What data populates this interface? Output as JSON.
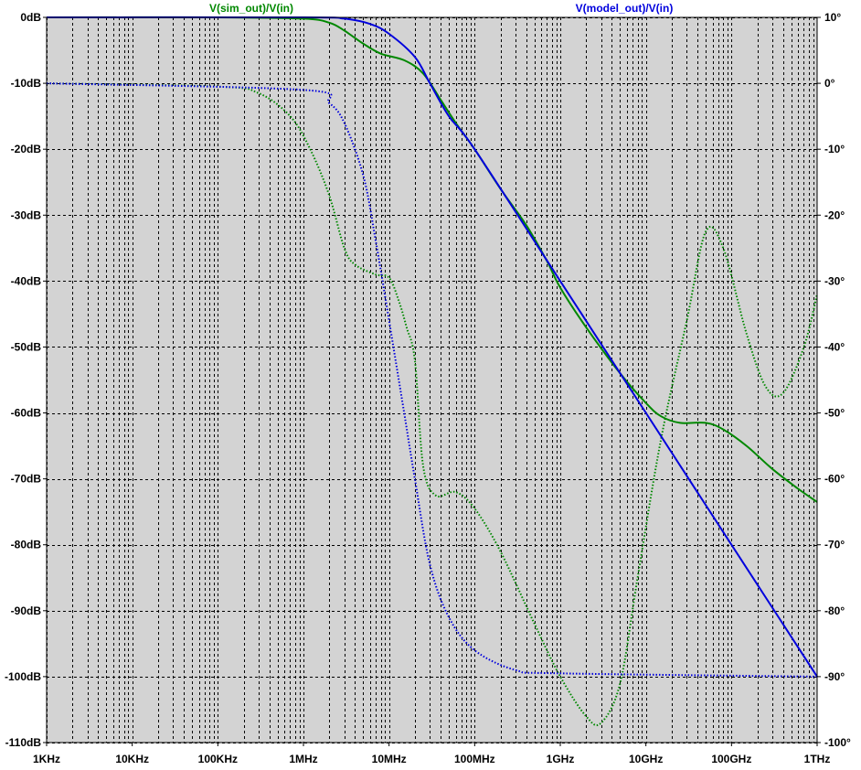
{
  "colors": {
    "background": "#ffffff",
    "plot_area": "#d3d3d3",
    "grid": "#000000",
    "sim": "#008800",
    "model": "#0000dd"
  },
  "chart_data": {
    "type": "line",
    "grid": true,
    "x_scale": "log",
    "x_unit": "Hz",
    "xlim": [
      1000,
      1000000000000
    ],
    "x_ticks": [
      {
        "value": 1000,
        "label": "1KHz"
      },
      {
        "value": 10000,
        "label": "10KHz"
      },
      {
        "value": 100000,
        "label": "100KHz"
      },
      {
        "value": 1000000,
        "label": "1MHz"
      },
      {
        "value": 10000000,
        "label": "10MHz"
      },
      {
        "value": 100000000,
        "label": "100MHz"
      },
      {
        "value": 1000000000,
        "label": "1GHz"
      },
      {
        "value": 10000000000,
        "label": "10GHz"
      },
      {
        "value": 100000000000,
        "label": "100GHz"
      },
      {
        "value": 1000000000000,
        "label": "1THz"
      }
    ],
    "y_left": {
      "unit": "dB",
      "lim": [
        -110,
        0
      ],
      "ticks": [
        {
          "value": 0,
          "label": "0dB"
        },
        {
          "value": -10,
          "label": "-10dB"
        },
        {
          "value": -20,
          "label": "-20dB"
        },
        {
          "value": -30,
          "label": "-30dB"
        },
        {
          "value": -40,
          "label": "-40dB"
        },
        {
          "value": -50,
          "label": "-50dB"
        },
        {
          "value": -60,
          "label": "-60dB"
        },
        {
          "value": -70,
          "label": "-70dB"
        },
        {
          "value": -80,
          "label": "-80dB"
        },
        {
          "value": -90,
          "label": "-90dB"
        },
        {
          "value": -100,
          "label": "-100dB"
        },
        {
          "value": -110,
          "label": "-110dB"
        }
      ]
    },
    "y_right": {
      "unit": "degrees",
      "lim": [
        -100,
        10
      ],
      "ticks": [
        {
          "value": 10,
          "label": "10°"
        },
        {
          "value": 0,
          "label": "0°"
        },
        {
          "value": -10,
          "label": "-10°"
        },
        {
          "value": -20,
          "label": "-20°"
        },
        {
          "value": -30,
          "label": "-30°"
        },
        {
          "value": -40,
          "label": "-40°"
        },
        {
          "value": -50,
          "label": "-50°"
        },
        {
          "value": -60,
          "label": "-60°"
        },
        {
          "value": -70,
          "label": "-70°"
        },
        {
          "value": -80,
          "label": "-80°"
        },
        {
          "value": -90,
          "label": "-90°"
        },
        {
          "value": -100,
          "label": "-100°"
        }
      ]
    },
    "series": [
      {
        "name": "V(sim_out)/V(in)",
        "color": "#008800",
        "magnitude_db": [
          [
            1000,
            0
          ],
          [
            100000,
            0
          ],
          [
            1000000,
            -0.2
          ],
          [
            2000000,
            -0.8
          ],
          [
            3000000,
            -2
          ],
          [
            5000000,
            -4
          ],
          [
            8000000,
            -5.5
          ],
          [
            15000000,
            -6.5
          ],
          [
            25000000,
            -8.5
          ],
          [
            40000000,
            -12.5
          ],
          [
            60000000,
            -16
          ],
          [
            100000000,
            -20
          ],
          [
            200000000,
            -26
          ],
          [
            400000000,
            -31.5
          ],
          [
            700000000,
            -37
          ],
          [
            1000000000,
            -41
          ],
          [
            2000000000,
            -47
          ],
          [
            5000000000,
            -54
          ],
          [
            10000000000,
            -58.5
          ],
          [
            15000000000,
            -60.5
          ],
          [
            25000000000,
            -61.5
          ],
          [
            50000000000,
            -61.5
          ],
          [
            80000000000,
            -62.5
          ],
          [
            150000000000,
            -65
          ],
          [
            300000000000,
            -68.5
          ],
          [
            600000000000,
            -71.5
          ],
          [
            1000000000000,
            -73.5
          ]
        ],
        "phase_deg": [
          [
            1000,
            0
          ],
          [
            100000,
            -0.5
          ],
          [
            300000,
            -1.5
          ],
          [
            700000,
            -5
          ],
          [
            1200000,
            -10
          ],
          [
            2000000,
            -17
          ],
          [
            3000000,
            -25
          ],
          [
            4000000,
            -27.5
          ],
          [
            7000000,
            -29
          ],
          [
            10000000,
            -29.5
          ],
          [
            13000000,
            -33
          ],
          [
            16000000,
            -37
          ],
          [
            20000000,
            -42
          ],
          [
            25000000,
            -58
          ],
          [
            35000000,
            -62.5
          ],
          [
            60000000,
            -62
          ],
          [
            100000000,
            -64.5
          ],
          [
            200000000,
            -71
          ],
          [
            500000000,
            -82
          ],
          [
            1000000000,
            -90
          ],
          [
            2000000000,
            -96
          ],
          [
            3000000000,
            -97
          ],
          [
            5000000000,
            -91
          ],
          [
            8000000000,
            -75
          ],
          [
            15000000000,
            -54
          ],
          [
            30000000000,
            -36
          ],
          [
            50000000000,
            -22.5
          ],
          [
            80000000000,
            -25
          ],
          [
            150000000000,
            -38
          ],
          [
            250000000000,
            -46
          ],
          [
            400000000000,
            -47
          ],
          [
            700000000000,
            -40
          ],
          [
            1000000000000,
            -32
          ]
        ]
      },
      {
        "name": "V(model_out)/V(in)",
        "color": "#0000dd",
        "magnitude_db": [
          [
            1000,
            0
          ],
          [
            1000000,
            0
          ],
          [
            3000000,
            -0.2
          ],
          [
            6000000,
            -1
          ],
          [
            10000000,
            -2.5
          ],
          [
            20000000,
            -6
          ],
          [
            30000000,
            -10
          ],
          [
            50000000,
            -15
          ],
          [
            100000000,
            -20
          ],
          [
            1000000000,
            -40
          ],
          [
            10000000000,
            -60
          ],
          [
            100000000000,
            -80
          ],
          [
            1000000000000,
            -100
          ]
        ],
        "phase_deg": [
          [
            1000,
            0
          ],
          [
            1000000,
            -1
          ],
          [
            2000000,
            -3
          ],
          [
            3000000,
            -6
          ],
          [
            5000000,
            -14
          ],
          [
            7000000,
            -24
          ],
          [
            10000000,
            -36
          ],
          [
            15000000,
            -50
          ],
          [
            20000000,
            -60
          ],
          [
            30000000,
            -73
          ],
          [
            50000000,
            -81
          ],
          [
            100000000,
            -86
          ],
          [
            300000000,
            -89
          ],
          [
            1000000000,
            -89.5
          ],
          [
            1000000000000,
            -90
          ]
        ]
      }
    ]
  }
}
